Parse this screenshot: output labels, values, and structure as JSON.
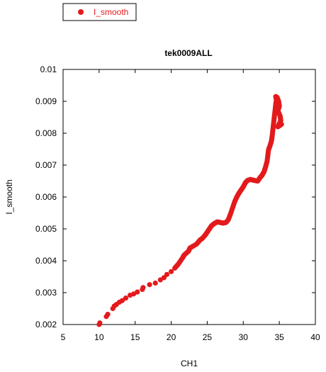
{
  "chart_data": {
    "type": "scatter",
    "title": "tek0009ALL",
    "xlabel": "CH1",
    "ylabel": "I_smooth",
    "xlim": [
      5,
      40
    ],
    "ylim": [
      0.002,
      0.01
    ],
    "xticks": [
      5,
      10,
      15,
      20,
      25,
      30,
      35,
      40
    ],
    "yticks": [
      0.002,
      0.003,
      0.004,
      0.005,
      0.006,
      0.007,
      0.008,
      0.009,
      0.01
    ],
    "ytick_labels": [
      "0.002",
      "0.003",
      "0.004",
      "0.005",
      "0.006",
      "0.007",
      "0.008",
      "0.009",
      "0.01"
    ],
    "grid": false,
    "legend_position": "top-left",
    "color": "#e31a1c",
    "series": [
      {
        "name": "I_smooth",
        "points": [
          [
            10.0,
            0.002
          ],
          [
            10.1,
            0.00205
          ],
          [
            11.0,
            0.00225
          ],
          [
            11.2,
            0.00232
          ],
          [
            11.9,
            0.0025
          ],
          [
            12.1,
            0.00258
          ],
          [
            12.4,
            0.00263
          ],
          [
            12.8,
            0.0027
          ],
          [
            13.2,
            0.00275
          ],
          [
            13.7,
            0.00283
          ],
          [
            14.3,
            0.00292
          ],
          [
            14.8,
            0.00296
          ],
          [
            15.3,
            0.00302
          ],
          [
            16.0,
            0.0031
          ],
          [
            16.1,
            0.00316
          ],
          [
            17.0,
            0.00325
          ],
          [
            17.8,
            0.0033
          ],
          [
            18.5,
            0.0034
          ],
          [
            19.0,
            0.00347
          ],
          [
            19.4,
            0.00357
          ],
          [
            20.0,
            0.00366
          ],
          [
            20.5,
            0.00377
          ],
          [
            21.0,
            0.0039
          ],
          [
            21.6,
            0.0041
          ],
          [
            21.8,
            0.00418
          ],
          [
            22.4,
            0.0043
          ],
          [
            22.6,
            0.0044
          ],
          [
            23.5,
            0.00452
          ],
          [
            24.0,
            0.00465
          ],
          [
            24.3,
            0.0047
          ],
          [
            24.7,
            0.0048
          ],
          [
            25.0,
            0.0049
          ],
          [
            25.3,
            0.005
          ],
          [
            25.6,
            0.0051
          ],
          [
            26.0,
            0.00517
          ],
          [
            26.4,
            0.00522
          ],
          [
            26.8,
            0.0052
          ],
          [
            27.2,
            0.00518
          ],
          [
            27.6,
            0.0052
          ],
          [
            27.9,
            0.00528
          ],
          [
            28.2,
            0.00545
          ],
          [
            28.5,
            0.00565
          ],
          [
            28.8,
            0.00585
          ],
          [
            29.1,
            0.006
          ],
          [
            29.4,
            0.00612
          ],
          [
            29.7,
            0.00622
          ],
          [
            30.0,
            0.00632
          ],
          [
            30.3,
            0.00645
          ],
          [
            30.6,
            0.00652
          ],
          [
            31.0,
            0.00655
          ],
          [
            31.5,
            0.00652
          ],
          [
            32.0,
            0.0065
          ],
          [
            32.3,
            0.0066
          ],
          [
            32.6,
            0.00668
          ],
          [
            32.9,
            0.0068
          ],
          [
            33.1,
            0.00695
          ],
          [
            33.3,
            0.00712
          ],
          [
            33.4,
            0.0073
          ],
          [
            33.5,
            0.00748
          ],
          [
            33.7,
            0.0076
          ],
          [
            33.9,
            0.00775
          ],
          [
            34.0,
            0.0079
          ],
          [
            34.1,
            0.0081
          ],
          [
            34.2,
            0.0083
          ],
          [
            34.3,
            0.0085
          ],
          [
            34.4,
            0.0087
          ],
          [
            34.5,
            0.0089
          ],
          [
            34.6,
            0.00905
          ],
          [
            34.5,
            0.00915
          ],
          [
            34.7,
            0.00912
          ],
          [
            34.9,
            0.009
          ],
          [
            35.0,
            0.00885
          ],
          [
            34.8,
            0.0087
          ],
          [
            35.1,
            0.00855
          ],
          [
            35.2,
            0.0084
          ],
          [
            35.0,
            0.0083
          ],
          [
            34.8,
            0.0082
          ],
          [
            35.3,
            0.00828
          ]
        ]
      }
    ]
  }
}
